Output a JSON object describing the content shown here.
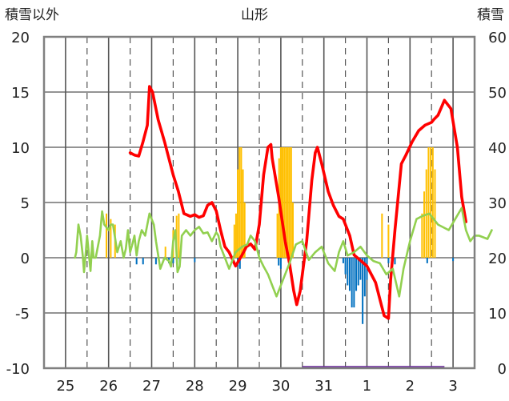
{
  "chart_data": {
    "type": "line",
    "title": "山形",
    "ylabel_left": "積雪以外",
    "ylabel_right": "積雪",
    "ylim_left": [
      -10,
      20
    ],
    "ylim_right": [
      0,
      60
    ],
    "yticks_left": [
      20,
      15,
      10,
      5,
      0,
      -5,
      -10
    ],
    "yticks_right": [
      60,
      50,
      40,
      30,
      20,
      10,
      0
    ],
    "x_range_days": [
      0,
      10
    ],
    "x_tick_labels": [
      "25",
      "26",
      "27",
      "28",
      "29",
      "30",
      "31",
      "1",
      "2",
      "3"
    ],
    "grid": true,
    "colors": {
      "temperature": "#ff0000",
      "green_line": "#92d050",
      "snowfall": "#ffc000",
      "precip": "#0070c0",
      "snow_bar": "#7030a0",
      "grid": "#555555",
      "frame": "#808080"
    },
    "series": [
      {
        "type": "line",
        "axis": "right",
        "points": [
          [
            2.0,
            39.0
          ],
          [
            2.1,
            38.6
          ],
          [
            2.2,
            38.4
          ],
          [
            2.3,
            41.0
          ],
          [
            2.4,
            44.0
          ],
          [
            2.45,
            51.0
          ],
          [
            2.52,
            50.0
          ],
          [
            2.65,
            45.0
          ],
          [
            2.8,
            41.0
          ],
          [
            2.9,
            38.0
          ],
          [
            3.0,
            35.0
          ],
          [
            3.12,
            32.0
          ],
          [
            3.25,
            28.0
          ],
          [
            3.4,
            27.5
          ],
          [
            3.5,
            27.8
          ],
          [
            3.6,
            27.3
          ],
          [
            3.7,
            27.6
          ],
          [
            3.8,
            29.5
          ],
          [
            3.9,
            30.0
          ],
          [
            4.0,
            28.5
          ],
          [
            4.1,
            25.0
          ],
          [
            4.2,
            22.0
          ],
          [
            4.3,
            21.0
          ],
          [
            4.45,
            18.5
          ],
          [
            4.6,
            20.5
          ],
          [
            4.7,
            22.0
          ],
          [
            4.8,
            22.5
          ],
          [
            4.9,
            21.5
          ],
          [
            5.0,
            26.0
          ],
          [
            5.1,
            35.0
          ],
          [
            5.2,
            40.0
          ],
          [
            5.27,
            40.5
          ],
          [
            5.3,
            38.0
          ],
          [
            5.45,
            31.0
          ],
          [
            5.6,
            23.0
          ],
          [
            5.7,
            19.0
          ],
          [
            5.8,
            14.0
          ],
          [
            5.87,
            11.5
          ],
          [
            5.95,
            14.0
          ],
          [
            6.1,
            23.0
          ],
          [
            6.22,
            34.0
          ],
          [
            6.3,
            39.0
          ],
          [
            6.35,
            40.0
          ],
          [
            6.45,
            37.0
          ],
          [
            6.6,
            32.0
          ],
          [
            6.72,
            29.5
          ],
          [
            6.85,
            27.5
          ],
          [
            6.95,
            27.0
          ],
          [
            7.1,
            24.0
          ],
          [
            7.2,
            20.5
          ],
          [
            7.35,
            19.5
          ],
          [
            7.5,
            18.5
          ],
          [
            7.7,
            15.5
          ],
          [
            7.85,
            11.0
          ],
          [
            7.9,
            9.5
          ],
          [
            8.0,
            9.0
          ],
          [
            8.05,
            16.0
          ],
          [
            8.15,
            25.0
          ],
          [
            8.3,
            37.0
          ],
          [
            8.4,
            38.5
          ],
          [
            8.55,
            41.0
          ],
          [
            8.7,
            43.0
          ],
          [
            8.85,
            44.0
          ],
          [
            9.0,
            44.5
          ],
          [
            9.05,
            45.0
          ],
          [
            9.15,
            45.8
          ],
          [
            9.3,
            48.5
          ],
          [
            9.45,
            47.0
          ],
          [
            9.6,
            40.0
          ],
          [
            9.7,
            31.0
          ],
          [
            9.8,
            26.5
          ]
        ]
      },
      {
        "type": "line",
        "axis": "left",
        "points": [
          [
            0.72,
            0.0
          ],
          [
            0.75,
            0.5
          ],
          [
            0.8,
            3.0
          ],
          [
            0.85,
            2.0
          ],
          [
            0.9,
            0.2
          ],
          [
            0.93,
            -1.3
          ],
          [
            0.97,
            0.5
          ],
          [
            1.0,
            2.0
          ],
          [
            1.05,
            0.0
          ],
          [
            1.08,
            -1.2
          ],
          [
            1.12,
            1.5
          ],
          [
            1.15,
            0.0
          ],
          [
            1.2,
            0.0
          ],
          [
            1.3,
            2.0
          ],
          [
            1.35,
            4.2
          ],
          [
            1.4,
            3.0
          ],
          [
            1.5,
            2.5
          ],
          [
            1.55,
            3.0
          ],
          [
            1.6,
            3.0
          ],
          [
            1.65,
            1.8
          ],
          [
            1.7,
            0.5
          ],
          [
            1.78,
            1.5
          ],
          [
            1.85,
            0.0
          ],
          [
            1.9,
            0.8
          ],
          [
            1.95,
            2.5
          ],
          [
            2.0,
            0.5
          ],
          [
            2.05,
            1.2
          ],
          [
            2.1,
            2.0
          ],
          [
            2.15,
            0.2
          ],
          [
            2.2,
            1.5
          ],
          [
            2.27,
            2.5
          ],
          [
            2.35,
            2.0
          ],
          [
            2.45,
            4.0
          ],
          [
            2.55,
            3.0
          ],
          [
            2.6,
            1.5
          ],
          [
            2.7,
            -1.0
          ],
          [
            2.8,
            0.0
          ],
          [
            2.9,
            -0.3
          ],
          [
            2.95,
            -0.8
          ],
          [
            3.0,
            1.5
          ],
          [
            3.05,
            2.5
          ],
          [
            3.1,
            -1.3
          ],
          [
            3.15,
            -0.8
          ],
          [
            3.2,
            2.0
          ],
          [
            3.3,
            2.5
          ],
          [
            3.4,
            2.0
          ],
          [
            3.5,
            2.5
          ],
          [
            3.6,
            2.8
          ],
          [
            3.7,
            2.2
          ],
          [
            3.8,
            2.3
          ],
          [
            3.9,
            1.5
          ],
          [
            4.0,
            2.3
          ],
          [
            4.05,
            2.0
          ],
          [
            4.1,
            1.0
          ],
          [
            4.2,
            0.0
          ],
          [
            4.3,
            -1.0
          ],
          [
            4.45,
            0.5
          ],
          [
            4.6,
            1.0
          ],
          [
            4.72,
            1.2
          ],
          [
            4.8,
            2.0
          ],
          [
            4.9,
            1.5
          ],
          [
            5.0,
            0.0
          ],
          [
            5.1,
            -0.8
          ],
          [
            5.2,
            -1.5
          ],
          [
            5.3,
            -2.5
          ],
          [
            5.4,
            -3.5
          ],
          [
            5.55,
            -2.0
          ],
          [
            5.7,
            -0.5
          ],
          [
            5.85,
            1.2
          ],
          [
            6.0,
            1.5
          ],
          [
            6.15,
            -0.2
          ],
          [
            6.3,
            0.5
          ],
          [
            6.45,
            1.0
          ],
          [
            6.6,
            -0.5
          ],
          [
            6.75,
            -1.2
          ],
          [
            6.85,
            0.5
          ],
          [
            6.95,
            1.5
          ],
          [
            7.05,
            0.2
          ],
          [
            7.2,
            0.5
          ],
          [
            7.35,
            1.0
          ],
          [
            7.5,
            0.2
          ],
          [
            7.65,
            -0.3
          ],
          [
            7.8,
            -0.5
          ],
          [
            7.95,
            -1.5
          ],
          [
            8.1,
            -1.0
          ],
          [
            8.25,
            -3.5
          ],
          [
            8.35,
            -1.0
          ],
          [
            8.5,
            1.5
          ],
          [
            8.65,
            3.5
          ],
          [
            8.8,
            3.8
          ],
          [
            8.95,
            4.0
          ],
          [
            9.05,
            3.5
          ],
          [
            9.15,
            3.0
          ],
          [
            9.25,
            2.8
          ],
          [
            9.4,
            2.5
          ],
          [
            9.55,
            3.5
          ],
          [
            9.7,
            4.5
          ],
          [
            9.8,
            2.5
          ],
          [
            9.9,
            1.5
          ],
          [
            10.0,
            2.0
          ],
          [
            10.1,
            2.0
          ],
          [
            10.3,
            1.7
          ],
          [
            10.4,
            2.5
          ]
        ]
      },
      {
        "type": "bar",
        "axis": "left",
        "bars": [
          [
            1.45,
            4.0
          ],
          [
            1.55,
            3.5
          ],
          [
            1.65,
            3.0
          ],
          [
            2.82,
            1.0
          ],
          [
            3.0,
            2.5
          ],
          [
            3.08,
            3.8
          ],
          [
            3.13,
            4.0
          ],
          [
            4.42,
            3.0
          ],
          [
            4.46,
            4.0
          ],
          [
            4.5,
            8.0
          ],
          [
            4.54,
            10.0
          ],
          [
            4.58,
            10.0
          ],
          [
            4.62,
            8.0
          ],
          [
            4.66,
            5.0
          ],
          [
            5.42,
            4.0
          ],
          [
            5.46,
            9.0
          ],
          [
            5.5,
            10.0
          ],
          [
            5.54,
            10.0
          ],
          [
            5.58,
            10.0
          ],
          [
            5.62,
            10.0
          ],
          [
            5.66,
            10.0
          ],
          [
            5.7,
            10.0
          ],
          [
            5.74,
            10.0
          ],
          [
            5.78,
            5.0
          ],
          [
            7.85,
            4.0
          ],
          [
            8.0,
            3.0
          ],
          [
            8.78,
            4.0
          ],
          [
            8.83,
            6.0
          ],
          [
            8.88,
            8.0
          ],
          [
            8.93,
            10.0
          ],
          [
            8.98,
            10.0
          ],
          [
            9.03,
            10.0
          ],
          [
            9.08,
            8.0
          ]
        ]
      },
      {
        "type": "bar",
        "axis": "left",
        "bars": [
          [
            2.15,
            -0.6
          ],
          [
            2.3,
            -0.6
          ],
          [
            2.6,
            -0.6
          ],
          [
            2.9,
            -0.5
          ],
          [
            3.0,
            -0.5
          ],
          [
            3.15,
            -0.5
          ],
          [
            3.5,
            -0.4
          ],
          [
            4.5,
            -0.8
          ],
          [
            4.55,
            -1.0
          ],
          [
            5.45,
            -0.7
          ],
          [
            5.5,
            -1.0
          ],
          [
            6.95,
            -0.5
          ],
          [
            7.0,
            -1.5
          ],
          [
            7.05,
            -2.5
          ],
          [
            7.1,
            -3.0
          ],
          [
            7.15,
            -4.5
          ],
          [
            7.2,
            -4.5
          ],
          [
            7.25,
            -3.0
          ],
          [
            7.3,
            -2.5
          ],
          [
            7.35,
            -2.0
          ],
          [
            7.4,
            -6.0
          ],
          [
            7.45,
            -3.5
          ],
          [
            7.5,
            -2.0
          ],
          [
            8.0,
            -0.5
          ],
          [
            8.15,
            -0.6
          ],
          [
            8.9,
            -0.5
          ],
          [
            9.5,
            -0.3
          ]
        ]
      },
      {
        "type": "bar",
        "axis": "right",
        "bars": [
          [
            6.0,
            9.3,
            0.4
          ]
        ]
      }
    ]
  }
}
